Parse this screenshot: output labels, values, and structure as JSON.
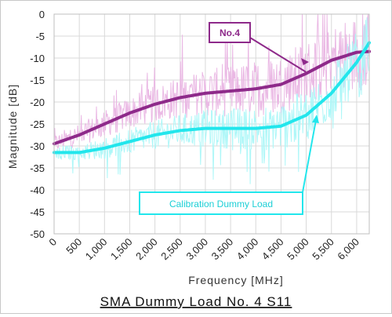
{
  "chart_data": {
    "type": "line",
    "title": "SMA Dummy Load No. 4 S11",
    "xlabel": "Frequency [MHz]",
    "ylabel": "Magnitude [dB]",
    "xlim": [
      0,
      6250
    ],
    "ylim": [
      -50,
      0
    ],
    "x_ticks": [
      0,
      500,
      1000,
      1500,
      2000,
      2500,
      3000,
      3500,
      4000,
      4500,
      5000,
      5500,
      6000
    ],
    "x_tick_labels": [
      "0",
      "500",
      "1,000",
      "1,500",
      "2,000",
      "2,500",
      "3,000",
      "3,500",
      "4,000",
      "4,500",
      "5,000",
      "5,500",
      "6,000"
    ],
    "y_ticks": [
      0,
      -5,
      -10,
      -15,
      -20,
      -25,
      -30,
      -35,
      -40,
      -45,
      -50
    ],
    "y_tick_labels": [
      "0",
      "-5",
      "-10",
      "-15",
      "-20",
      "-25",
      "-30",
      "-35",
      "-40",
      "-45",
      "-50"
    ],
    "grid": true,
    "series": [
      {
        "name": "No.4",
        "color": "#8e2a8a",
        "raw_color": "#eab8e4",
        "x": [
          0,
          500,
          1000,
          1500,
          2000,
          2500,
          3000,
          3500,
          4000,
          4500,
          5000,
          5500,
          6000,
          6250
        ],
        "values": [
          -29.5,
          -27.5,
          -25,
          -22.5,
          -20.5,
          -19,
          -18,
          -17.5,
          -17,
          -16,
          -13.5,
          -10.5,
          -8.7,
          -8.5
        ]
      },
      {
        "name": "Calibration Dummy Load",
        "color": "#22e6ec",
        "raw_color": "#aef7f8",
        "x": [
          0,
          500,
          1000,
          1500,
          2000,
          2500,
          3000,
          3500,
          4000,
          4500,
          5000,
          5500,
          6000,
          6250
        ],
        "values": [
          -31.5,
          -31.5,
          -30.5,
          -29,
          -27.5,
          -26.5,
          -26,
          -26,
          -26,
          -25.5,
          -23,
          -18,
          -11,
          -6.5
        ]
      }
    ]
  }
}
